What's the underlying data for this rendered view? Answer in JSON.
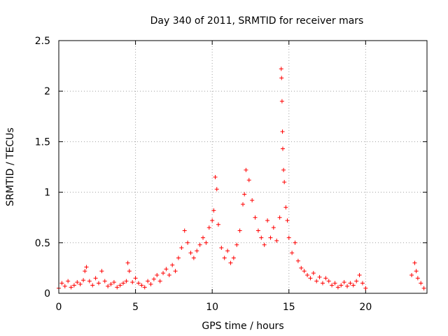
{
  "chart_data": {
    "type": "scatter",
    "title": "Day 340 of 2011, SRMTID for receiver mars",
    "xlabel": "GPS time / hours",
    "ylabel": "SRMTID / TECUs",
    "xlim": [
      0,
      24
    ],
    "ylim": [
      0,
      2.5
    ],
    "x_ticks": [
      "0",
      "5",
      "10",
      "15",
      "20"
    ],
    "y_ticks": [
      "0",
      "0.5",
      "1",
      "1.5",
      "2",
      "2.5"
    ],
    "grid": true,
    "marker": "+",
    "series_color": "#ff0000",
    "points": [
      [
        0.0,
        0.05
      ],
      [
        0.2,
        0.1
      ],
      [
        0.4,
        0.07
      ],
      [
        0.6,
        0.12
      ],
      [
        0.8,
        0.06
      ],
      [
        1.0,
        0.08
      ],
      [
        1.2,
        0.11
      ],
      [
        1.4,
        0.09
      ],
      [
        1.6,
        0.13
      ],
      [
        1.7,
        0.22
      ],
      [
        1.8,
        0.26
      ],
      [
        2.0,
        0.12
      ],
      [
        2.2,
        0.08
      ],
      [
        2.4,
        0.15
      ],
      [
        2.6,
        0.1
      ],
      [
        2.8,
        0.22
      ],
      [
        3.0,
        0.12
      ],
      [
        3.2,
        0.07
      ],
      [
        3.4,
        0.09
      ],
      [
        3.6,
        0.11
      ],
      [
        3.8,
        0.06
      ],
      [
        4.0,
        0.08
      ],
      [
        4.2,
        0.1
      ],
      [
        4.4,
        0.12
      ],
      [
        4.5,
        0.3
      ],
      [
        4.6,
        0.22
      ],
      [
        4.8,
        0.11
      ],
      [
        5.0,
        0.15
      ],
      [
        5.2,
        0.1
      ],
      [
        5.4,
        0.08
      ],
      [
        5.6,
        0.06
      ],
      [
        5.8,
        0.12
      ],
      [
        6.0,
        0.09
      ],
      [
        6.2,
        0.14
      ],
      [
        6.4,
        0.18
      ],
      [
        6.6,
        0.12
      ],
      [
        6.8,
        0.2
      ],
      [
        7.0,
        0.24
      ],
      [
        7.2,
        0.18
      ],
      [
        7.4,
        0.28
      ],
      [
        7.6,
        0.22
      ],
      [
        7.8,
        0.35
      ],
      [
        8.0,
        0.45
      ],
      [
        8.2,
        0.62
      ],
      [
        8.4,
        0.5
      ],
      [
        8.6,
        0.4
      ],
      [
        8.8,
        0.35
      ],
      [
        9.0,
        0.42
      ],
      [
        9.2,
        0.48
      ],
      [
        9.4,
        0.55
      ],
      [
        9.6,
        0.5
      ],
      [
        9.8,
        0.65
      ],
      [
        10.0,
        0.72
      ],
      [
        10.1,
        0.82
      ],
      [
        10.2,
        1.15
      ],
      [
        10.3,
        1.03
      ],
      [
        10.4,
        0.68
      ],
      [
        10.6,
        0.45
      ],
      [
        10.8,
        0.35
      ],
      [
        11.0,
        0.42
      ],
      [
        11.2,
        0.3
      ],
      [
        11.4,
        0.35
      ],
      [
        11.6,
        0.48
      ],
      [
        11.8,
        0.62
      ],
      [
        12.0,
        0.88
      ],
      [
        12.1,
        0.98
      ],
      [
        12.2,
        1.22
      ],
      [
        12.4,
        1.12
      ],
      [
        12.6,
        0.92
      ],
      [
        12.8,
        0.75
      ],
      [
        13.0,
        0.62
      ],
      [
        13.2,
        0.55
      ],
      [
        13.4,
        0.48
      ],
      [
        13.6,
        0.72
      ],
      [
        13.8,
        0.55
      ],
      [
        14.0,
        0.65
      ],
      [
        14.2,
        0.52
      ],
      [
        14.4,
        0.75
      ],
      [
        14.5,
        2.22
      ],
      [
        14.52,
        2.13
      ],
      [
        14.55,
        1.9
      ],
      [
        14.58,
        1.6
      ],
      [
        14.6,
        1.43
      ],
      [
        14.65,
        1.22
      ],
      [
        14.7,
        1.1
      ],
      [
        14.8,
        0.85
      ],
      [
        14.9,
        0.72
      ],
      [
        15.0,
        0.55
      ],
      [
        15.2,
        0.4
      ],
      [
        15.4,
        0.5
      ],
      [
        15.6,
        0.32
      ],
      [
        15.8,
        0.25
      ],
      [
        16.0,
        0.22
      ],
      [
        16.2,
        0.18
      ],
      [
        16.4,
        0.15
      ],
      [
        16.6,
        0.2
      ],
      [
        16.8,
        0.12
      ],
      [
        17.0,
        0.16
      ],
      [
        17.2,
        0.1
      ],
      [
        17.4,
        0.15
      ],
      [
        17.6,
        0.12
      ],
      [
        17.8,
        0.08
      ],
      [
        18.0,
        0.1
      ],
      [
        18.2,
        0.06
      ],
      [
        18.4,
        0.08
      ],
      [
        18.6,
        0.11
      ],
      [
        18.8,
        0.07
      ],
      [
        19.0,
        0.1
      ],
      [
        19.2,
        0.08
      ],
      [
        19.4,
        0.12
      ],
      [
        19.6,
        0.18
      ],
      [
        19.8,
        0.1
      ],
      [
        20.0,
        0.05
      ],
      [
        23.0,
        0.18
      ],
      [
        23.2,
        0.3
      ],
      [
        23.3,
        0.22
      ],
      [
        23.4,
        0.15
      ],
      [
        23.6,
        0.1
      ],
      [
        23.8,
        0.05
      ]
    ]
  }
}
